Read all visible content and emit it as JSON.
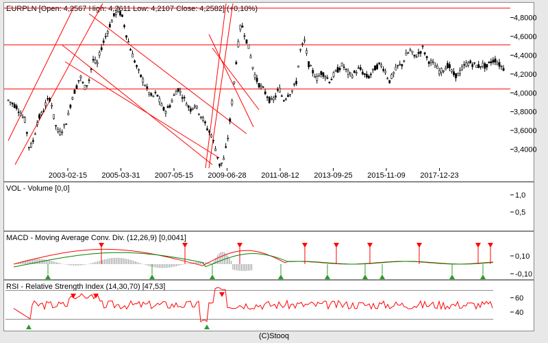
{
  "footer": "(C)Stooq",
  "colors": {
    "price": "#000000",
    "channel": "#ff0000",
    "macd": "#ff0000",
    "signal": "#008000",
    "hist": "#a0a0a0",
    "rsi": "#ff0000",
    "up_marker": "#2a9d2a",
    "down_marker": "#ff0000"
  },
  "chart_data": [
    {
      "type": "candlestick",
      "title": "EURPLN [Open: 4,2567  High: 4,2611  Low: 4,2107  Close: 4,2582]  (+0,10%)",
      "x_ticks": [
        "2003-02-15",
        "2005-03-31",
        "2007-05-15",
        "2009-06-28",
        "2011-08-12",
        "2013-09-25",
        "2015-11-09",
        "2017-12-23"
      ],
      "y_ticks": [
        "3,400",
        "3,600",
        "3,800",
        "4,0000",
        "4,2000",
        "4,4000",
        "4,6000",
        "4,8000"
      ],
      "y_tick_labels": [
        "3,4000",
        "3,6000",
        "3,8000",
        "4,0000",
        "4,2000",
        "4,4000",
        "4,6000",
        "4,8000"
      ],
      "ylim": [
        3.2,
        4.95
      ],
      "horizontal_lines": [
        4.9,
        4.51,
        4.04
      ],
      "series_points": [
        [
          0,
          3.92
        ],
        [
          2,
          3.85
        ],
        [
          4,
          3.7
        ],
        [
          5,
          3.4
        ],
        [
          6,
          3.5
        ],
        [
          7,
          3.72
        ],
        [
          8,
          3.78
        ],
        [
          9,
          3.9
        ],
        [
          10,
          3.95
        ],
        [
          11,
          3.68
        ],
        [
          12,
          3.56
        ],
        [
          13,
          3.62
        ],
        [
          14,
          3.72
        ],
        [
          15,
          3.94
        ],
        [
          16,
          4.05
        ],
        [
          17,
          4.18
        ],
        [
          18,
          4.05
        ],
        [
          19,
          4.12
        ],
        [
          20,
          4.35
        ],
        [
          21,
          4.3
        ],
        [
          22,
          4.48
        ],
        [
          23,
          4.6
        ],
        [
          24,
          4.72
        ],
        [
          25,
          4.82
        ],
        [
          26,
          4.88
        ],
        [
          27,
          4.8
        ],
        [
          28,
          4.6
        ],
        [
          29,
          4.45
        ],
        [
          30,
          4.32
        ],
        [
          31,
          4.2
        ],
        [
          32,
          4.12
        ],
        [
          33,
          4.02
        ],
        [
          34,
          3.95
        ],
        [
          35,
          4.0
        ],
        [
          36,
          3.88
        ],
        [
          37,
          3.8
        ],
        [
          38,
          3.85
        ],
        [
          39,
          3.95
        ],
        [
          40,
          4.05
        ],
        [
          41,
          3.98
        ],
        [
          42,
          3.9
        ],
        [
          43,
          3.82
        ],
        [
          44,
          3.88
        ],
        [
          45,
          3.8
        ],
        [
          46,
          3.72
        ],
        [
          47,
          3.62
        ],
        [
          48,
          3.55
        ],
        [
          49,
          3.4
        ],
        [
          50,
          3.22
        ],
        [
          51,
          3.3
        ],
        [
          52,
          3.55
        ],
        [
          53,
          3.95
        ],
        [
          54,
          4.4
        ],
        [
          55,
          4.75
        ],
        [
          56,
          4.6
        ],
        [
          57,
          4.45
        ],
        [
          58,
          4.22
        ],
        [
          59,
          4.1
        ],
        [
          60,
          4.05
        ],
        [
          61,
          3.98
        ],
        [
          62,
          3.9
        ],
        [
          63,
          3.95
        ],
        [
          64,
          4.05
        ],
        [
          65,
          3.92
        ],
        [
          66,
          3.98
        ],
        [
          67,
          4.02
        ],
        [
          68,
          4.1
        ],
        [
          69,
          4.45
        ],
        [
          70,
          4.55
        ],
        [
          71,
          4.3
        ],
        [
          72,
          4.22
        ],
        [
          73,
          4.15
        ],
        [
          74,
          4.22
        ],
        [
          75,
          4.18
        ],
        [
          76,
          4.12
        ],
        [
          77,
          4.2
        ],
        [
          78,
          4.25
        ],
        [
          79,
          4.3
        ],
        [
          80,
          4.22
        ],
        [
          81,
          4.18
        ],
        [
          82,
          4.22
        ],
        [
          83,
          4.26
        ],
        [
          84,
          4.2
        ],
        [
          85,
          4.16
        ],
        [
          86,
          4.22
        ],
        [
          87,
          4.28
        ],
        [
          88,
          4.3
        ],
        [
          89,
          4.24
        ],
        [
          90,
          4.12
        ],
        [
          91,
          4.2
        ],
        [
          92,
          4.28
        ],
        [
          93,
          4.3
        ],
        [
          94,
          4.4
        ],
        [
          95,
          4.45
        ],
        [
          96,
          4.38
        ],
        [
          97,
          4.42
        ],
        [
          98,
          4.48
        ],
        [
          99,
          4.35
        ],
        [
          100,
          4.32
        ],
        [
          101,
          4.28
        ],
        [
          102,
          4.22
        ],
        [
          103,
          4.26
        ],
        [
          104,
          4.3
        ],
        [
          105,
          4.2
        ],
        [
          106,
          4.18
        ],
        [
          107,
          4.24
        ],
        [
          108,
          4.3
        ],
        [
          109,
          4.32
        ],
        [
          110,
          4.3
        ],
        [
          111,
          4.28
        ],
        [
          112,
          4.3
        ],
        [
          113,
          4.27
        ],
        [
          114,
          4.33
        ],
        [
          115,
          4.35
        ],
        [
          116,
          4.3
        ],
        [
          117,
          4.26
        ]
      ]
    },
    {
      "type": "bar",
      "title": "VOL - Volume [0,0]",
      "y_ticks": [
        "0,5",
        "1,0"
      ],
      "ylim": [
        0,
        1.2
      ]
    },
    {
      "type": "line",
      "title": "MACD - Moving Average Conv. Div. (12,26,9) [0,0041]",
      "y_ticks": [
        "-0,10",
        "0,10"
      ],
      "ylim": [
        -0.16,
        0.22
      ]
    },
    {
      "type": "line",
      "title": "RSI - Relative Strength Index (14,30,70) [47,53]",
      "y_ticks": [
        "40",
        "60"
      ],
      "ylim": [
        18,
        78
      ],
      "horizontal_lines": [
        30,
        70
      ]
    }
  ]
}
